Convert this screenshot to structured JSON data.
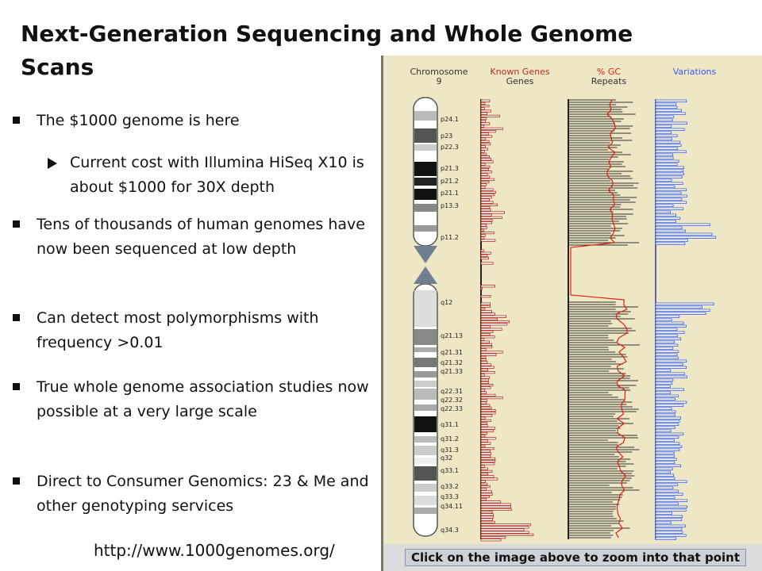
{
  "slide": {
    "title": "Next-Generation Sequencing and Whole Genome Scans",
    "bullets": [
      {
        "text": "The $1000 genome is here",
        "level": 1
      },
      {
        "text": "Current cost with Illumina HiSeq X10 is about $1000 for 30X depth",
        "level": 2
      },
      {
        "text": "Tens of thousands of human genomes have now been sequenced at low depth",
        "level": 1
      },
      {
        "text": "Can detect most polymorphisms with frequency >0.01",
        "level": 1
      },
      {
        "text": "True whole genome association studies now possible at a very large scale",
        "level": 1
      },
      {
        "text": "Direct to Consumer Genomics: 23 & Me and other genotyping services",
        "level": 1
      }
    ],
    "url": "http://www.1000genomes.org/"
  },
  "genome_map": {
    "chromosome_header": [
      "Chromosome",
      "9"
    ],
    "genes_header": [
      "Known Genes",
      "Genes"
    ],
    "gc_header": [
      "% GC",
      "Repeats"
    ],
    "variations_header": "Variations",
    "bands": [
      "p24.1",
      "p23",
      "p22.3",
      "p21.3",
      "p21.2",
      "p21.1",
      "p13.3",
      "p11.2",
      "q12",
      "q21.13",
      "q21.31",
      "q21.32",
      "q21.33",
      "q22.31",
      "q22.32",
      "q22.33",
      "q31.1",
      "q31.2",
      "q31.3",
      "q32",
      "q33.1",
      "q33.2",
      "q33.3",
      "q34.11",
      "q34.3"
    ],
    "footer": "Click on the image above to zoom into that point",
    "colors": {
      "known_genes": "#b03020",
      "gc": "#e02010",
      "variations": "#3a5ae0",
      "background": "#eee7c6"
    }
  }
}
